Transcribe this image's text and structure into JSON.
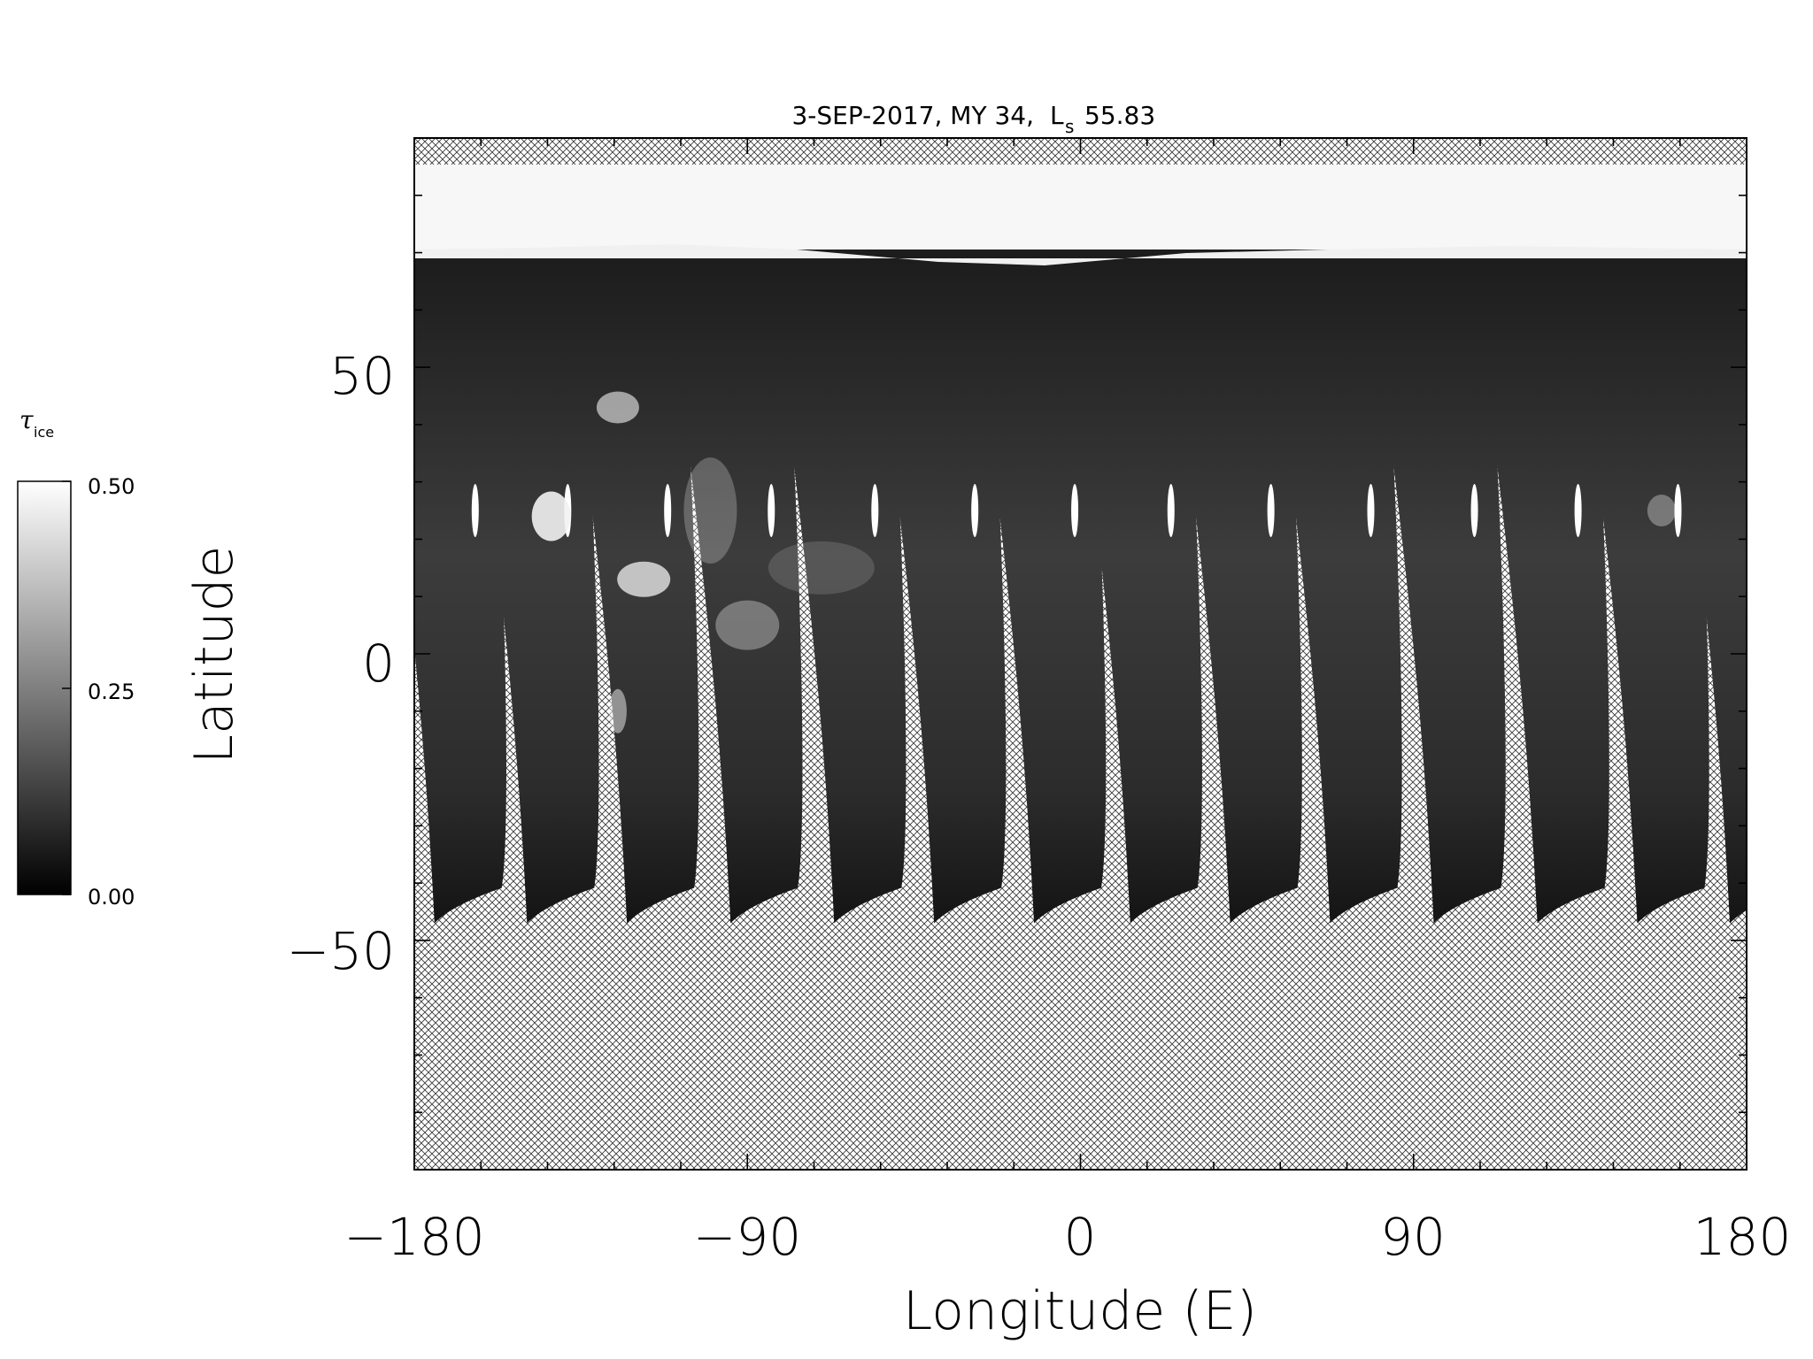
{
  "map": {
    "title_date": "3-SEP-2017, MY 34,",
    "title_ls_symbol": "L",
    "title_ls_subscript": "s",
    "title_ls_value": "55.83",
    "xlabel": "Longitude (E)",
    "ylabel": "Latitude",
    "x_ticks": [
      "−180",
      "−90",
      "0",
      "90",
      "180"
    ],
    "y_ticks": [
      "50",
      "0",
      "−50"
    ]
  },
  "chart_data": {
    "type": "heatmap",
    "title": "3-SEP-2017, MY 34, Ls 55.83",
    "xlabel": "Longitude (E)",
    "ylabel": "Latitude",
    "xlim": [
      -180,
      180
    ],
    "ylim": [
      -90,
      90
    ],
    "x_tick_values": [
      -180,
      -90,
      0,
      90,
      180
    ],
    "y_tick_values": [
      50,
      0,
      -50
    ],
    "swath_center_longitudes": [
      -170,
      -145,
      -118,
      -90,
      -62,
      -35,
      -8,
      18,
      45,
      72,
      100,
      128,
      155,
      180
    ],
    "swath_coverage_lat": [
      -47,
      70
    ],
    "north_cap_lat": [
      71,
      85
    ],
    "no_data_pattern": "cross-hatch"
  },
  "colorbar": {
    "symbol": "τ",
    "subscript": "ice",
    "max_label": "0.50",
    "mid_label": "0.25",
    "min_label": "0.00",
    "range": [
      0.0,
      0.5
    ],
    "colors": {
      "min": "#000000",
      "max": "#ffffff"
    }
  }
}
